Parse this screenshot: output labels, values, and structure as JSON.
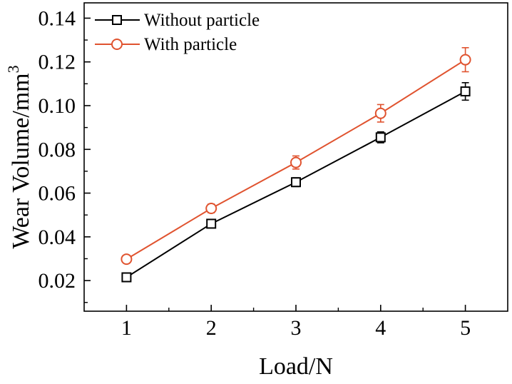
{
  "chart_data": {
    "type": "line",
    "x": [
      1,
      2,
      3,
      4,
      5
    ],
    "xlabel": "Load/N",
    "ylabel": "Wear Volume/mm",
    "ylabel_superscript": "3",
    "xlim": [
      0.5,
      5.5
    ],
    "ylim": [
      0.006,
      0.147
    ],
    "xticks": [
      "1",
      "2",
      "3",
      "4",
      "5"
    ],
    "yticks": [
      "0.02",
      "0.04",
      "0.06",
      "0.08",
      "0.10",
      "0.12",
      "0.14"
    ],
    "ytick_values": [
      0.02,
      0.04,
      0.06,
      0.08,
      0.1,
      0.12,
      0.14
    ],
    "grid": false,
    "legend_position": "top-left",
    "series": [
      {
        "name": "Without particle",
        "values": [
          0.0215,
          0.046,
          0.065,
          0.0855,
          0.1065
        ],
        "errors": [
          0.0015,
          0.001,
          0.002,
          0.0025,
          0.004
        ],
        "color": "#000000",
        "marker": "square"
      },
      {
        "name": "With particle",
        "values": [
          0.0298,
          0.053,
          0.074,
          0.0965,
          0.121
        ],
        "errors": [
          0.001,
          0.002,
          0.003,
          0.004,
          0.0055
        ],
        "color": "#e0532f",
        "marker": "circle"
      }
    ]
  }
}
